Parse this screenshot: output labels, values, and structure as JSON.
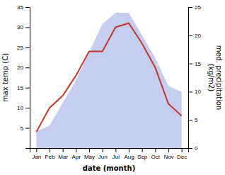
{
  "chart_data": {
    "type": "line",
    "categories": [
      "Jan",
      "Feb",
      "Mar",
      "Apr",
      "May",
      "Jun",
      "Jul",
      "Aug",
      "Sep",
      "Oct",
      "Nov",
      "Dec"
    ],
    "xlabel": "date (month)",
    "ylabel": "max temp (C)",
    "y2label": "med. precipitation\n(kg/m2)",
    "ylim": [
      0,
      35
    ],
    "yticks": [
      5,
      10,
      15,
      20,
      25,
      30,
      35
    ],
    "y2lim": [
      0,
      25
    ],
    "y2ticks": [
      0,
      5,
      10,
      15,
      20,
      25
    ],
    "grid": false,
    "series": [
      {
        "type": "area",
        "axis": "y2",
        "color": "#c5cef0",
        "values": [
          3,
          4,
          8,
          12,
          17,
          22,
          24,
          24,
          20,
          16,
          11,
          10
        ]
      },
      {
        "type": "line",
        "color": "#c0392b",
        "values": [
          4,
          10,
          13,
          18,
          24,
          24,
          30,
          31,
          26,
          20,
          11,
          8
        ]
      }
    ]
  }
}
